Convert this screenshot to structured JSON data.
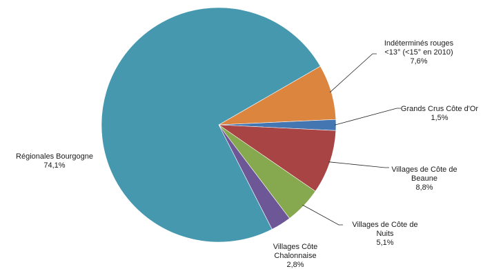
{
  "chart_data": {
    "type": "pie",
    "slices": [
      {
        "label": "Indéterminés rouges <13° (<15° en 2010)",
        "value": 7.6,
        "value_text": "7,6%",
        "color": "#DC853F",
        "label_lines": [
          "Indéterminés rouges",
          "<13° (<15° en 2010)",
          "7,6%"
        ]
      },
      {
        "label": "Grands Crus Côte d'Or",
        "value": 1.5,
        "value_text": "1,5%",
        "color": "#4477B2",
        "label_lines": [
          "Grands Crus Côte d'Or",
          "1,5%"
        ]
      },
      {
        "label": "Villages de Côte de Beaune",
        "value": 8.8,
        "value_text": "8,8%",
        "color": "#A84444",
        "label_lines": [
          "Villages de Côte de",
          "Beaune",
          "8,8%"
        ]
      },
      {
        "label": "Villages de Côte de Nuits",
        "value": 5.1,
        "value_text": "5,1%",
        "color": "#86A84E",
        "label_lines": [
          "Villages de Côte de",
          "Nuits",
          "5,1%"
        ]
      },
      {
        "label": "Villages Côte Chalonnaise",
        "value": 2.8,
        "value_text": "2,8%",
        "color": "#6E5796",
        "label_lines": [
          "Villages Côte",
          "Chalonnaise",
          "2,8%"
        ]
      },
      {
        "label": "Régionales Bourgogne",
        "value": 74.1,
        "value_text": "74,1%",
        "color": "#4698AF",
        "label_lines": [
          "Régionales Bourgogne",
          "74,1%"
        ]
      }
    ]
  }
}
